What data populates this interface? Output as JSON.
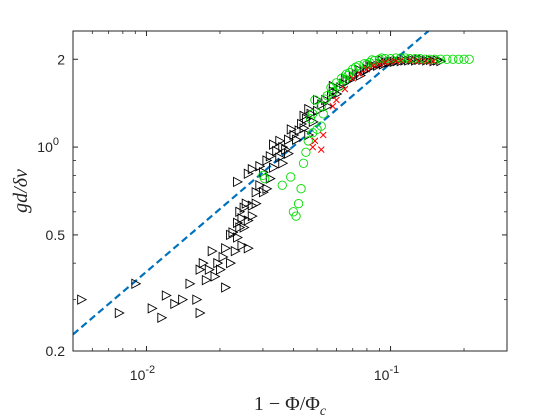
{
  "chart_data": {
    "type": "scatter",
    "title": "",
    "xlabel": "1 − Φ/Φ_c",
    "ylabel": "gd/δv",
    "xscale": "log",
    "yscale": "log",
    "xlim": [
      0.005,
      0.3
    ],
    "ylim": [
      0.2,
      2.5
    ],
    "grid": false,
    "legend": "none",
    "xticks": [
      {
        "value": 0.01,
        "base": "10",
        "exp": "-2"
      },
      {
        "value": 0.1,
        "base": "10",
        "exp": "-1"
      }
    ],
    "yticks": [
      {
        "value": 0.2,
        "label": "0.2"
      },
      {
        "value": 0.5,
        "label": "0.5"
      },
      {
        "value": 1.0,
        "label": "10",
        "exp": "0"
      },
      {
        "value": 2.0,
        "label": "2"
      }
    ],
    "series": [
      {
        "marker": "triangle-right",
        "color": "#000000",
        "points": [
          [
            0.0054,
            0.3
          ],
          [
            0.0077,
            0.27
          ],
          [
            0.009,
            0.34
          ],
          [
            0.0105,
            0.28
          ],
          [
            0.0115,
            0.26
          ],
          [
            0.012,
            0.31
          ],
          [
            0.013,
            0.29
          ],
          [
            0.014,
            0.3
          ],
          [
            0.015,
            0.34
          ],
          [
            0.016,
            0.3
          ],
          [
            0.0165,
            0.27
          ],
          [
            0.017,
            0.4
          ],
          [
            0.018,
            0.38
          ],
          [
            0.019,
            0.36
          ],
          [
            0.02,
            0.38
          ],
          [
            0.021,
            0.33
          ],
          [
            0.022,
            0.4
          ],
          [
            0.0185,
            0.44
          ],
          [
            0.0165,
            0.38
          ],
          [
            0.0175,
            0.35
          ],
          [
            0.0195,
            0.4
          ],
          [
            0.0205,
            0.42
          ],
          [
            0.021,
            0.45
          ],
          [
            0.022,
            0.5
          ],
          [
            0.0235,
            0.49
          ],
          [
            0.024,
            0.53
          ],
          [
            0.025,
            0.53
          ],
          [
            0.023,
            0.44
          ],
          [
            0.0245,
            0.46
          ],
          [
            0.026,
            0.45
          ],
          [
            0.024,
            0.6
          ],
          [
            0.025,
            0.62
          ],
          [
            0.027,
            0.63
          ],
          [
            0.028,
            0.64
          ],
          [
            0.026,
            0.56
          ],
          [
            0.027,
            0.58
          ],
          [
            0.0255,
            0.64
          ],
          [
            0.0245,
            0.57
          ],
          [
            0.0235,
            0.55
          ],
          [
            0.0225,
            0.51
          ],
          [
            0.0235,
            0.76
          ],
          [
            0.026,
            0.81
          ],
          [
            0.027,
            0.84
          ],
          [
            0.028,
            0.7
          ],
          [
            0.029,
            0.74
          ],
          [
            0.03,
            0.7
          ],
          [
            0.031,
            0.72
          ],
          [
            0.029,
            0.86
          ],
          [
            0.031,
            0.9
          ],
          [
            0.032,
            0.93
          ],
          [
            0.033,
            0.85
          ],
          [
            0.034,
            0.97
          ],
          [
            0.035,
            0.92
          ],
          [
            0.033,
            1.02
          ],
          [
            0.035,
            1.05
          ],
          [
            0.036,
            1.0
          ],
          [
            0.038,
            1.06
          ],
          [
            0.037,
            0.98
          ],
          [
            0.032,
            0.78
          ],
          [
            0.03,
            0.82
          ],
          [
            0.04,
            1.1
          ],
          [
            0.042,
            1.14
          ],
          [
            0.041,
            1.06
          ],
          [
            0.043,
            1.2
          ],
          [
            0.044,
            1.16
          ],
          [
            0.045,
            1.25
          ],
          [
            0.046,
            1.1
          ],
          [
            0.047,
            1.3
          ],
          [
            0.048,
            1.22
          ],
          [
            0.05,
            1.33
          ],
          [
            0.052,
            1.4
          ],
          [
            0.054,
            1.45
          ],
          [
            0.055,
            1.38
          ],
          [
            0.057,
            1.5
          ],
          [
            0.058,
            1.55
          ],
          [
            0.06,
            1.52
          ],
          [
            0.062,
            1.6
          ],
          [
            0.064,
            1.65
          ],
          [
            0.066,
            1.68
          ],
          [
            0.068,
            1.7
          ],
          [
            0.07,
            1.74
          ],
          [
            0.072,
            1.78
          ],
          [
            0.075,
            1.76
          ],
          [
            0.078,
            1.82
          ],
          [
            0.08,
            1.85
          ],
          [
            0.083,
            1.88
          ],
          [
            0.085,
            1.9
          ],
          [
            0.088,
            1.9
          ],
          [
            0.09,
            1.93
          ],
          [
            0.093,
            1.92
          ],
          [
            0.095,
            1.94
          ],
          [
            0.098,
            1.95
          ],
          [
            0.1,
            1.96
          ],
          [
            0.103,
            1.96
          ],
          [
            0.106,
            1.97
          ],
          [
            0.11,
            1.97
          ],
          [
            0.114,
            1.98
          ],
          [
            0.118,
            1.98
          ],
          [
            0.122,
            1.99
          ],
          [
            0.126,
            1.98
          ],
          [
            0.13,
            1.99
          ],
          [
            0.135,
            1.99
          ],
          [
            0.14,
            1.98
          ],
          [
            0.145,
            1.99
          ],
          [
            0.15,
            1.97
          ],
          [
            0.155,
            1.98
          ],
          [
            0.16,
            1.97
          ],
          [
            0.058,
            1.62
          ],
          [
            0.065,
            1.72
          ],
          [
            0.074,
            1.84
          ],
          [
            0.082,
            1.92
          ],
          [
            0.092,
            1.98
          ],
          [
            0.05,
            1.45
          ],
          [
            0.046,
            1.35
          ],
          [
            0.044,
            1.28
          ],
          [
            0.039,
            1.15
          ],
          [
            0.038,
            0.95
          ],
          [
            0.036,
            0.88
          ]
        ]
      },
      {
        "marker": "circle",
        "color": "#00dd00",
        "points": [
          [
            0.03,
            0.8
          ],
          [
            0.0305,
            0.78
          ],
          [
            0.036,
            0.74
          ],
          [
            0.039,
            0.79
          ],
          [
            0.04,
            0.6
          ],
          [
            0.041,
            0.58
          ],
          [
            0.042,
            0.64
          ],
          [
            0.043,
            0.72
          ],
          [
            0.044,
            0.88
          ],
          [
            0.045,
            0.96
          ],
          [
            0.047,
            1.25
          ],
          [
            0.048,
            1.3
          ],
          [
            0.049,
            1.45
          ],
          [
            0.05,
            1.15
          ],
          [
            0.052,
            1.18
          ],
          [
            0.054,
            1.46
          ],
          [
            0.055,
            1.5
          ],
          [
            0.057,
            1.6
          ],
          [
            0.06,
            1.66
          ],
          [
            0.063,
            1.72
          ],
          [
            0.066,
            1.78
          ],
          [
            0.07,
            1.85
          ],
          [
            0.074,
            1.9
          ],
          [
            0.078,
            1.93
          ],
          [
            0.082,
            1.95
          ],
          [
            0.086,
            1.98
          ],
          [
            0.09,
            2.0
          ],
          [
            0.095,
            2.01
          ],
          [
            0.1,
            2.01
          ],
          [
            0.105,
            2.02
          ],
          [
            0.11,
            2.02
          ],
          [
            0.115,
            2.02
          ],
          [
            0.12,
            2.01
          ],
          [
            0.126,
            2.01
          ],
          [
            0.132,
            2.01
          ],
          [
            0.138,
            2.0
          ],
          [
            0.145,
            2.0
          ],
          [
            0.152,
            2.0
          ],
          [
            0.16,
            2.0
          ],
          [
            0.17,
            2.0
          ],
          [
            0.18,
            2.0
          ],
          [
            0.19,
            2.0
          ],
          [
            0.2,
            2.0
          ],
          [
            0.21,
            2.0
          ],
          [
            0.052,
            1.38
          ],
          [
            0.058,
            1.55
          ],
          [
            0.065,
            1.7
          ],
          [
            0.068,
            1.8
          ],
          [
            0.072,
            1.88
          ],
          [
            0.08,
            1.92
          ],
          [
            0.062,
            1.62
          ],
          [
            0.067,
            1.76
          ],
          [
            0.046,
            1.05
          ],
          [
            0.048,
            1.12
          ],
          [
            0.053,
            1.3
          ],
          [
            0.084,
            1.99
          ],
          [
            0.092,
            2.02
          ]
        ]
      },
      {
        "marker": "cross",
        "color": "#ff0000",
        "points": [
          [
            0.048,
            1.0
          ],
          [
            0.049,
            1.05
          ],
          [
            0.052,
            0.98
          ],
          [
            0.053,
            1.1
          ],
          [
            0.058,
            1.38
          ],
          [
            0.06,
            1.45
          ],
          [
            0.065,
            1.58
          ],
          [
            0.07,
            1.72
          ],
          [
            0.075,
            1.78
          ],
          [
            0.08,
            1.85
          ],
          [
            0.085,
            1.9
          ],
          [
            0.09,
            1.92
          ],
          [
            0.095,
            1.95
          ],
          [
            0.1,
            1.96
          ],
          [
            0.105,
            1.97
          ],
          [
            0.11,
            1.98
          ],
          [
            0.12,
            1.98
          ],
          [
            0.13,
            1.97
          ],
          [
            0.14,
            1.97
          ],
          [
            0.15,
            1.97
          ]
        ]
      }
    ],
    "reference_line": {
      "style": "dashed",
      "color": "#0072bd",
      "points": [
        [
          0.005,
          0.228
        ],
        [
          0.143,
          2.5
        ]
      ]
    }
  }
}
